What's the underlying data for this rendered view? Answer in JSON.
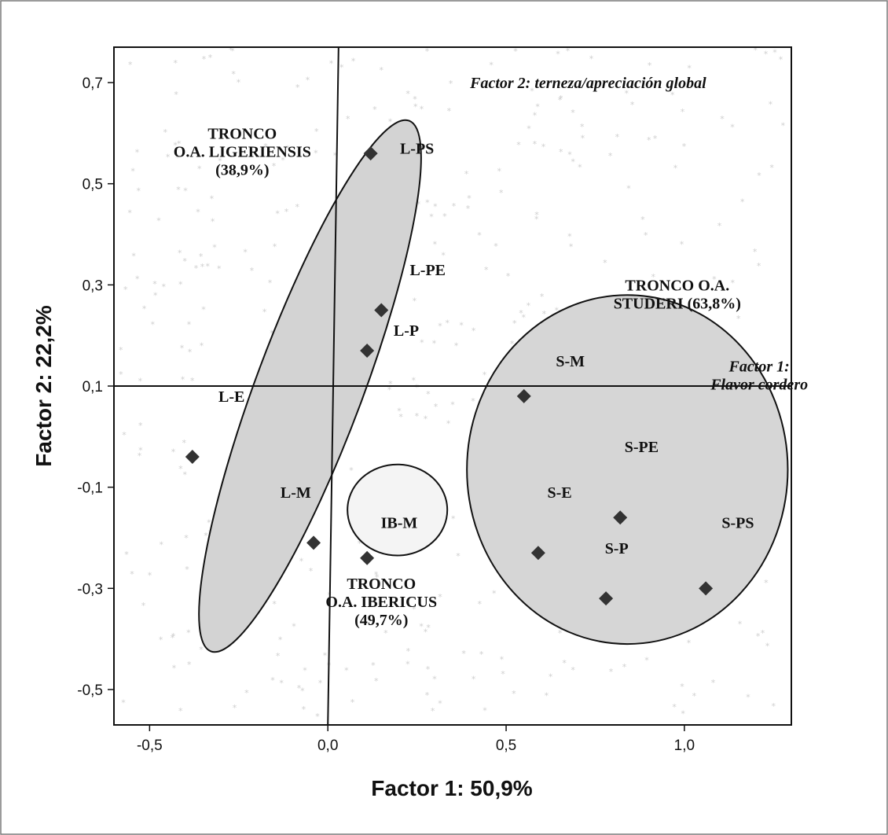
{
  "chart_data": {
    "type": "scatter",
    "xlabel": "Factor 1: 50,9%",
    "ylabel": "Factor 2: 22,2%",
    "xlim": [
      -0.6,
      1.3
    ],
    "ylim": [
      -0.57,
      0.77
    ],
    "xticks": [
      -0.5,
      0.0,
      0.5,
      1.0
    ],
    "xtick_labels": [
      "-0,5",
      "0,0",
      "0,5",
      "1,0"
    ],
    "yticks": [
      -0.5,
      -0.3,
      -0.1,
      0.1,
      0.3,
      0.5,
      0.7
    ],
    "ytick_labels": [
      "-0,5",
      "-0,3",
      "-0,1",
      "0,1",
      "0,3",
      "0,5",
      "0,7"
    ],
    "grid": false,
    "points": [
      {
        "label": "L-PS",
        "x": 0.12,
        "y": 0.56
      },
      {
        "label": "L-PE",
        "x": 0.15,
        "y": 0.25
      },
      {
        "label": "L-P",
        "x": 0.11,
        "y": 0.17
      },
      {
        "label": "L-E",
        "x": -0.38,
        "y": -0.04
      },
      {
        "label": "L-M",
        "x": -0.04,
        "y": -0.21
      },
      {
        "label": "IB-M",
        "x": 0.11,
        "y": -0.24
      },
      {
        "label": "S-M",
        "x": 0.55,
        "y": 0.08
      },
      {
        "label": "S-PE",
        "x": 0.82,
        "y": -0.16
      },
      {
        "label": "S-E",
        "x": 0.59,
        "y": -0.23
      },
      {
        "label": "S-P",
        "x": 0.78,
        "y": -0.32
      },
      {
        "label": "S-PS",
        "x": 1.06,
        "y": -0.3
      }
    ],
    "point_labels": [
      {
        "text": "L-PS",
        "x": 0.25,
        "y": 0.57
      },
      {
        "text": "L-PE",
        "x": 0.28,
        "y": 0.33
      },
      {
        "text": "L-P",
        "x": 0.22,
        "y": 0.21
      },
      {
        "text": "L-E",
        "x": -0.27,
        "y": 0.08
      },
      {
        "text": "L-M",
        "x": -0.09,
        "y": -0.11
      },
      {
        "text": "IB-M",
        "x": 0.2,
        "y": -0.17
      },
      {
        "text": "S-M",
        "x": 0.68,
        "y": 0.15
      },
      {
        "text": "S-PE",
        "x": 0.88,
        "y": -0.02
      },
      {
        "text": "S-E",
        "x": 0.65,
        "y": -0.11
      },
      {
        "text": "S-P",
        "x": 0.81,
        "y": -0.22
      },
      {
        "text": "S-PS",
        "x": 1.15,
        "y": -0.17
      }
    ],
    "reference_lines": {
      "horizontal_y": 0.1,
      "vertical_from": {
        "x": 0.03,
        "y": 0.77
      },
      "vertical_to": {
        "x": 0.0,
        "y": -0.57
      }
    },
    "groups": [
      {
        "lines": [
          "TRONCO",
          "O.A. LIGERIENSIS",
          "(38,9%)"
        ],
        "label_x": -0.24,
        "label_y": 0.6,
        "shape": "ellipse",
        "cx": -0.05,
        "cy": 0.1,
        "rx": 0.15,
        "ry": 0.56,
        "angle": 20.5,
        "fill": "#d3d3d3"
      },
      {
        "lines": [
          "TRONCO",
          "O.A. IBERICUS",
          "(49,7%)"
        ],
        "label_x": 0.15,
        "label_y": -0.29,
        "shape": "ellipse",
        "cx": 0.195,
        "cy": -0.145,
        "rx": 0.14,
        "ry": 0.09,
        "angle": 0,
        "fill": "#f4f4f4"
      },
      {
        "lines": [
          "TRONCO O.A.",
          "STUDERI (63,8%)"
        ],
        "label_x": 0.98,
        "label_y": 0.3,
        "shape": "ellipse",
        "cx": 0.84,
        "cy": -0.065,
        "rx": 0.45,
        "ry": 0.345,
        "angle": 0,
        "fill": "#d6d6d6"
      }
    ],
    "annotations": [
      {
        "lines": [
          "Factor 2: terneza/apreciación global"
        ],
        "x": 0.73,
        "y": 0.7
      },
      {
        "lines": [
          "Factor 1:",
          "Flavor cordero"
        ],
        "x": 1.21,
        "y": 0.14
      }
    ],
    "colors": {
      "marker": "#333333",
      "outline": "#111111",
      "background_stars": "#d0d0d0"
    }
  }
}
